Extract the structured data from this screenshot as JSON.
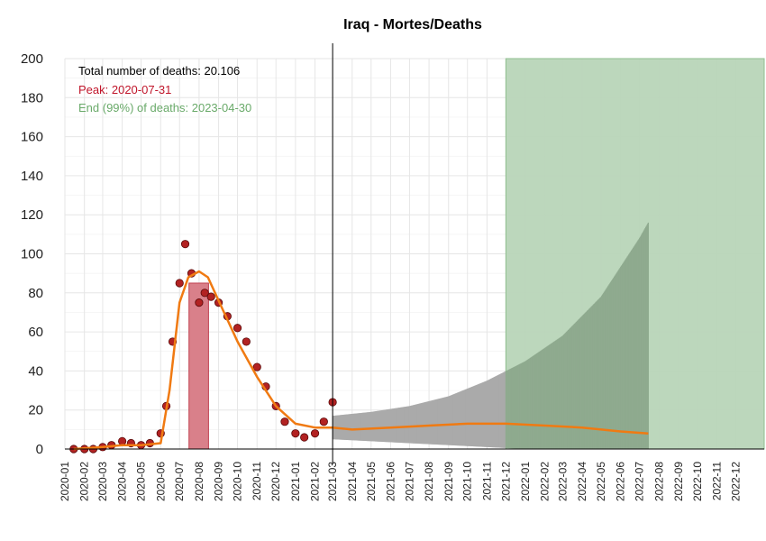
{
  "chart_data": {
    "type": "line",
    "title": "Iraq - Mortes/Deaths",
    "xlabel": "",
    "ylabel": "",
    "x_range": [
      "2020-01-01",
      "2023-01-15"
    ],
    "ylim": [
      0,
      200
    ],
    "yticks": [
      0,
      20,
      40,
      60,
      80,
      100,
      120,
      140,
      160,
      180,
      200
    ],
    "xticks": [
      "2020-01",
      "2020-02",
      "2020-03",
      "2020-04",
      "2020-05",
      "2020-06",
      "2020-07",
      "2020-08",
      "2020-09",
      "2020-10",
      "2020-11",
      "2020-12",
      "2021-01",
      "2021-02",
      "2021-03",
      "2021-04",
      "2021-05",
      "2021-06",
      "2021-07",
      "2021-08",
      "2021-09",
      "2021-10",
      "2021-11",
      "2021-12",
      "2022-01",
      "2022-02",
      "2022-03",
      "2022-04",
      "2022-05",
      "2022-06",
      "2022-07",
      "2022-08",
      "2022-09",
      "2022-10",
      "2022-11",
      "2022-12"
    ],
    "grid": true,
    "annotations": {
      "total": "Total number of deaths: 20.106",
      "peak": "Peak: 2020-07-31",
      "end": "End (99%) of deaths: 2023-04-30"
    },
    "vline_date": "2021-03-01",
    "peak_band": {
      "start": "2020-07-16",
      "end": "2020-08-16",
      "height": 85
    },
    "end_band": {
      "start": "2021-12-01",
      "end": "2023-01-15",
      "height": 200
    },
    "observed": [
      [
        "2020-01-15",
        0
      ],
      [
        "2020-02-01",
        0
      ],
      [
        "2020-02-15",
        0
      ],
      [
        "2020-03-01",
        1
      ],
      [
        "2020-03-15",
        2
      ],
      [
        "2020-04-01",
        4
      ],
      [
        "2020-04-15",
        3
      ],
      [
        "2020-05-01",
        2
      ],
      [
        "2020-05-15",
        3
      ],
      [
        "2020-06-01",
        8
      ],
      [
        "2020-06-10",
        22
      ],
      [
        "2020-06-20",
        55
      ],
      [
        "2020-07-01",
        85
      ],
      [
        "2020-07-10",
        105
      ],
      [
        "2020-07-20",
        90
      ],
      [
        "2020-08-01",
        75
      ],
      [
        "2020-08-10",
        80
      ],
      [
        "2020-08-20",
        78
      ],
      [
        "2020-09-01",
        75
      ],
      [
        "2020-09-15",
        68
      ],
      [
        "2020-10-01",
        62
      ],
      [
        "2020-10-15",
        55
      ],
      [
        "2020-11-01",
        42
      ],
      [
        "2020-11-15",
        32
      ],
      [
        "2020-12-01",
        22
      ],
      [
        "2020-12-15",
        14
      ],
      [
        "2021-01-01",
        8
      ],
      [
        "2021-01-15",
        6
      ],
      [
        "2021-02-01",
        8
      ],
      [
        "2021-02-15",
        14
      ],
      [
        "2021-03-01",
        24
      ]
    ],
    "fitted": [
      [
        "2020-01-15",
        0
      ],
      [
        "2020-03-01",
        1
      ],
      [
        "2020-04-01",
        2
      ],
      [
        "2020-05-01",
        2
      ],
      [
        "2020-06-01",
        3
      ],
      [
        "2020-06-15",
        30
      ],
      [
        "2020-07-01",
        75
      ],
      [
        "2020-07-15",
        88
      ],
      [
        "2020-08-01",
        91
      ],
      [
        "2020-08-15",
        88
      ],
      [
        "2020-09-01",
        76
      ],
      [
        "2020-10-01",
        55
      ],
      [
        "2020-11-01",
        37
      ],
      [
        "2020-12-01",
        22
      ],
      [
        "2021-01-01",
        13
      ],
      [
        "2021-02-01",
        11
      ],
      [
        "2021-03-01",
        11
      ],
      [
        "2021-04-01",
        10
      ],
      [
        "2021-06-01",
        11
      ],
      [
        "2021-08-01",
        12
      ],
      [
        "2021-10-01",
        13
      ],
      [
        "2021-12-01",
        13
      ],
      [
        "2022-02-01",
        12
      ],
      [
        "2022-04-01",
        11
      ],
      [
        "2022-06-01",
        9
      ],
      [
        "2022-07-15",
        8
      ]
    ],
    "forecast_band": [
      [
        "2021-03-01",
        17,
        5
      ],
      [
        "2021-05-01",
        19,
        4
      ],
      [
        "2021-07-01",
        22,
        3
      ],
      [
        "2021-09-01",
        27,
        2
      ],
      [
        "2021-11-01",
        35,
        1
      ],
      [
        "2022-01-01",
        45,
        0
      ],
      [
        "2022-03-01",
        58,
        0
      ],
      [
        "2022-05-01",
        78,
        0
      ],
      [
        "2022-07-01",
        108,
        0
      ],
      [
        "2022-07-15",
        116,
        0
      ]
    ],
    "colors": {
      "observed": "#b22222",
      "observed_edge": "#5a0a0a",
      "fitted": "#f07a12",
      "peak_band": "#d9808a",
      "end_band": "#b8d5b8",
      "forecast": "#aaaaaa",
      "forecast_overlap": "#8faa8f",
      "peak_text": "#c0152a",
      "end_text": "#6aaa6a",
      "total_text": "#000000"
    }
  }
}
